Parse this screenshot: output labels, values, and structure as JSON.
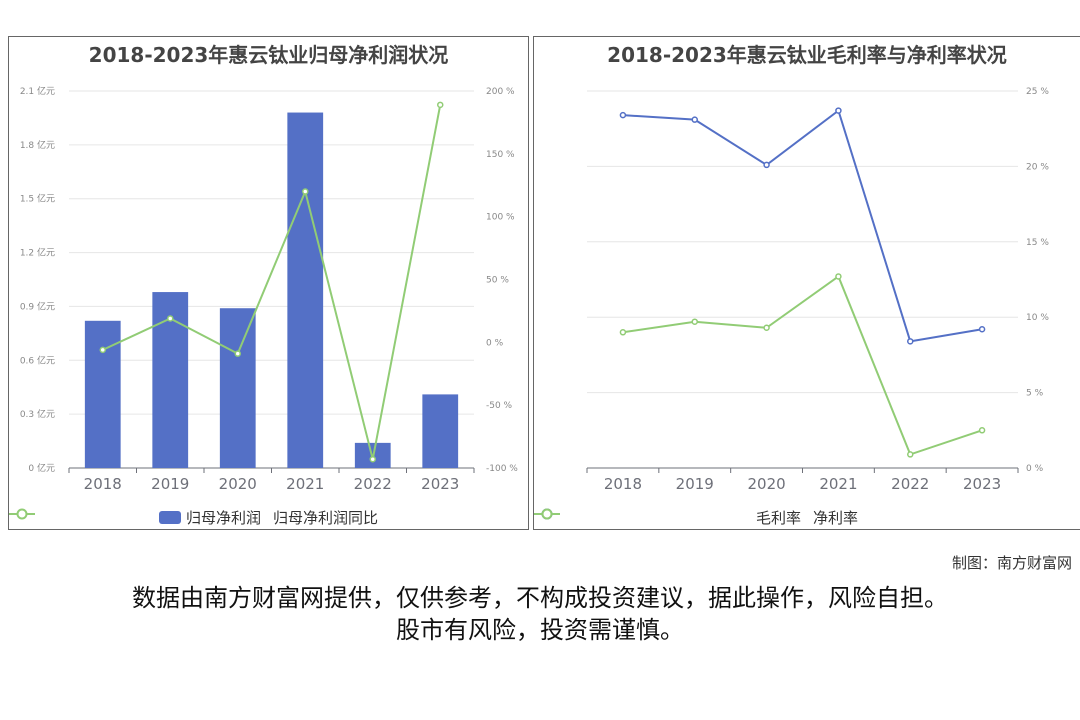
{
  "colors": {
    "bar": "#5470c6",
    "green": "#91cc75",
    "blue": "#5470c6",
    "axis_text": "#6e7079",
    "tick_text": "#888888",
    "grid": "#e6e6e6"
  },
  "chart_data": [
    {
      "type": "bar",
      "title": "2018-2023年惠云钛业归母净利润状况",
      "categories": [
        "2018",
        "2019",
        "2020",
        "2021",
        "2022",
        "2023"
      ],
      "series": [
        {
          "name": "归母净利润",
          "type": "bar",
          "axis": "left",
          "values": [
            0.82,
            0.98,
            0.89,
            1.98,
            0.14,
            0.41
          ]
        },
        {
          "name": "归母净利润同比",
          "type": "line",
          "axis": "right",
          "values": [
            -6,
            19,
            -9,
            120,
            -93,
            189
          ]
        }
      ],
      "y_left": {
        "ticks": [
          "0 亿元",
          "0.3 亿元",
          "0.6 亿元",
          "0.9 亿元",
          "1.2 亿元",
          "1.5 亿元",
          "1.8 亿元",
          "2.1 亿元"
        ],
        "ylim": [
          0,
          2.1
        ]
      },
      "y_right": {
        "ticks": [
          "-100 %",
          "-50 %",
          "0 %",
          "50 %",
          "100 %",
          "150 %",
          "200 %"
        ],
        "ylim": [
          -100,
          200
        ]
      },
      "grid": true,
      "legend": "bottom-center"
    },
    {
      "type": "line",
      "title": "2018-2023年惠云钛业毛利率与净利率状况",
      "categories": [
        "2018",
        "2019",
        "2020",
        "2021",
        "2022",
        "2023"
      ],
      "series": [
        {
          "name": "毛利率",
          "color": "#5470c6",
          "values": [
            23.4,
            23.1,
            20.1,
            23.7,
            8.4,
            9.2
          ]
        },
        {
          "name": "净利率",
          "color": "#91cc75",
          "values": [
            9.0,
            9.7,
            9.3,
            12.7,
            0.9,
            2.5
          ]
        }
      ],
      "y_right": {
        "ticks": [
          "0 %",
          "5 %",
          "10 %",
          "15 %",
          "20 %",
          "25 %"
        ],
        "ylim": [
          0,
          25
        ]
      },
      "grid": true,
      "legend": "bottom-center"
    }
  ],
  "footer": {
    "credit": "制图：南方财富网",
    "disclaimer_line1": "数据由南方财富网提供，仅供参考，不构成投资建议，据此操作，风险自担。",
    "disclaimer_line2": "股市有风险，投资需谨慎。"
  }
}
